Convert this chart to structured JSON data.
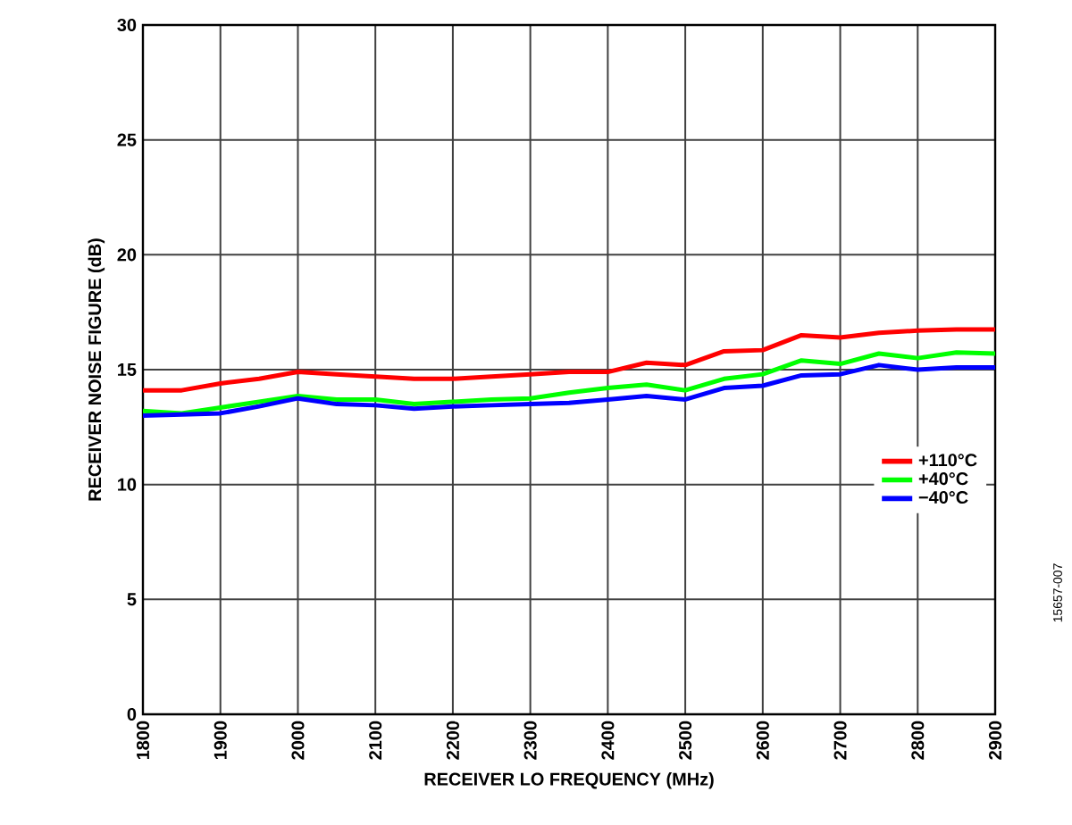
{
  "chart_data": {
    "type": "line",
    "xlabel": "RECEIVER LO FREQUENCY (MHz)",
    "ylabel": "RECEIVER NOISE FIGURE (dB)",
    "x": [
      1800,
      1850,
      1900,
      1950,
      2000,
      2050,
      2100,
      2150,
      2200,
      2250,
      2300,
      2350,
      2400,
      2450,
      2500,
      2550,
      2600,
      2650,
      2700,
      2750,
      2800,
      2850,
      2900
    ],
    "series": [
      {
        "name": "+110°C",
        "color": "#ff0000",
        "values": [
          14.1,
          14.1,
          14.4,
          14.6,
          14.9,
          14.8,
          14.7,
          14.6,
          14.6,
          14.7,
          14.8,
          14.9,
          14.9,
          15.3,
          15.2,
          15.8,
          15.85,
          16.5,
          16.4,
          16.6,
          16.7,
          16.75,
          16.75
        ]
      },
      {
        "name": "+40°C",
        "color": "#00ff00",
        "values": [
          13.2,
          13.1,
          13.35,
          13.6,
          13.85,
          13.7,
          13.7,
          13.5,
          13.6,
          13.7,
          13.75,
          14.0,
          14.2,
          14.35,
          14.1,
          14.6,
          14.8,
          15.4,
          15.25,
          15.7,
          15.5,
          15.75,
          15.7
        ]
      },
      {
        "name": "−40°C",
        "color": "#0000ff",
        "values": [
          13.0,
          13.05,
          13.1,
          13.4,
          13.75,
          13.5,
          13.45,
          13.3,
          13.4,
          13.45,
          13.5,
          13.55,
          13.7,
          13.85,
          13.7,
          14.2,
          14.3,
          14.75,
          14.8,
          15.2,
          15.0,
          15.1,
          15.1
        ]
      }
    ],
    "xlim": [
      1800,
      2900
    ],
    "xticks": [
      1800,
      1900,
      2000,
      2100,
      2200,
      2300,
      2400,
      2500,
      2600,
      2700,
      2800,
      2900
    ],
    "ylim": [
      0,
      30
    ],
    "yticks": [
      0,
      5,
      10,
      15,
      20,
      25,
      30
    ],
    "grid": true,
    "legend": "right",
    "marker": "none",
    "line_style": "solid",
    "annotations": [
      "15657-007"
    ]
  }
}
